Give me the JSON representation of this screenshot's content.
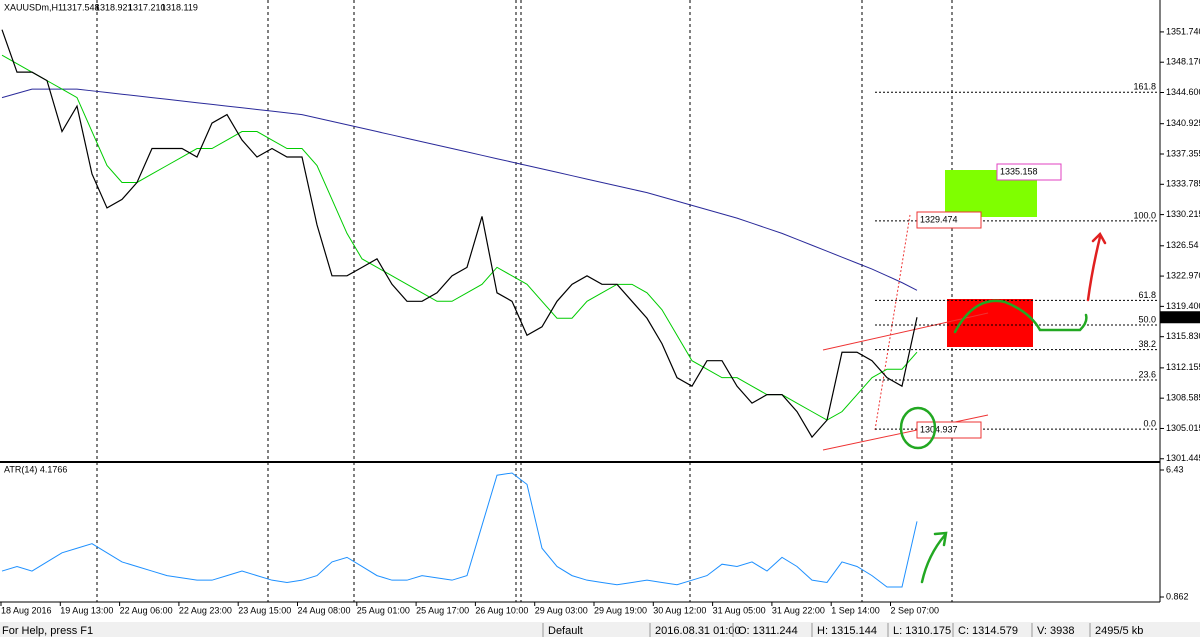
{
  "header": {
    "symbol": "XAUUSDm,H1",
    "open": "1317.548",
    "high": "1318.921",
    "low": "1317.210",
    "close": "1318.119"
  },
  "chart_data": {
    "type": "line",
    "x_labels": [
      "18 Aug 2016",
      "19 Aug 13:00",
      "22 Aug 06:00",
      "22 Aug 23:00",
      "23 Aug 15:00",
      "24 Aug 08:00",
      "25 Aug 01:00",
      "25 Aug 17:00",
      "26 Aug 10:00",
      "29 Aug 03:00",
      "29 Aug 19:00",
      "30 Aug 12:00",
      "31 Aug 05:00",
      "31 Aug 22:00",
      "1 Sep 14:00",
      "2 Sep 07:00"
    ],
    "ylim": [
      1301.3,
      1355.5
    ],
    "yticks": [
      {
        "value": 1351.74,
        "label": "1351.740"
      },
      {
        "value": 1348.17,
        "label": "1348.170"
      },
      {
        "value": 1344.6,
        "label": "1344.600"
      },
      1340.925,
      1337.355,
      1333.785,
      1330.215,
      1326.54,
      {
        "value": 1322.97,
        "label": "1322.970"
      },
      {
        "value": 1319.4,
        "label": "1319.400"
      },
      {
        "value": 1315.83,
        "label": "1315.830"
      },
      1312.155,
      1308.585,
      1305.015,
      1301.445
    ],
    "series": [
      {
        "color": "#000000",
        "values": [
          1352,
          1347,
          1347,
          1346,
          1340,
          1343,
          1335,
          1331,
          1332,
          1334,
          1338,
          1338,
          1338,
          1337,
          1341,
          1342,
          1339,
          1337,
          1338,
          1337,
          1337,
          1329,
          1323,
          1323,
          1324,
          1325,
          1322,
          1320,
          1320,
          1321,
          1323,
          1324,
          1330,
          1321,
          1320,
          1316,
          1317,
          1320,
          1322,
          1323,
          1322,
          1322,
          1320,
          1318,
          1315,
          1311,
          1310,
          1313,
          1313,
          1310,
          1308,
          1309,
          1309,
          1307,
          1304,
          1306,
          1314,
          1314,
          1313,
          1311,
          1310,
          1318.119
        ]
      },
      {
        "color": "#00cc00",
        "values": [
          1349,
          1348,
          1347,
          1346,
          1345,
          1344,
          1340,
          1336,
          1334,
          1334,
          1335,
          1336,
          1337,
          1338,
          1338,
          1339,
          1340,
          1340,
          1339,
          1338,
          1338,
          1336,
          1332,
          1328,
          1325,
          1324,
          1323,
          1322,
          1321,
          1320,
          1320,
          1321,
          1322,
          1324,
          1323,
          1322,
          1320,
          1318,
          1318,
          1320,
          1321,
          1322,
          1322,
          1321,
          1319,
          1316,
          1313,
          1312,
          1311,
          1311,
          1310,
          1309,
          1309,
          1308,
          1307,
          1306,
          1307,
          1309,
          1311,
          1312,
          1312,
          1314
        ]
      },
      {
        "color": "#2a2a9a",
        "values": [
          1344,
          1344.5,
          1345,
          1345,
          1345,
          1345,
          1344.8,
          1344.6,
          1344.4,
          1344.2,
          1344,
          1343.8,
          1343.6,
          1343.4,
          1343.2,
          1343,
          1342.8,
          1342.6,
          1342.4,
          1342.2,
          1342,
          1341.6,
          1341.2,
          1340.8,
          1340.4,
          1340,
          1339.6,
          1339.2,
          1338.8,
          1338.4,
          1338,
          1337.6,
          1337.2,
          1336.8,
          1336.4,
          1336,
          1335.6,
          1335.2,
          1334.8,
          1334.4,
          1334,
          1333.6,
          1333.2,
          1332.8,
          1332.3,
          1331.8,
          1331.3,
          1330.8,
          1330.3,
          1329.8,
          1329.2,
          1328.6,
          1328,
          1327.3,
          1326.6,
          1325.9,
          1325.2,
          1324.5,
          1323.8,
          1323,
          1322.2,
          1321.3
        ]
      }
    ],
    "fibonacci": {
      "low": 1304.937,
      "high": 1329.474,
      "target": 1335.158,
      "levels": [
        161.8,
        {
          "value": 100,
          "label": "100.0"
        },
        61.8,
        {
          "value": 50,
          "label": "50.0"
        },
        38.2,
        23.6,
        {
          "value": 0,
          "label": "0.0"
        }
      ]
    },
    "atr": {
      "title": "ATR(14) 4.1766",
      "color": "#1e90ff",
      "ylim": [
        0.862,
        6.43
      ],
      "yticks": [
        6.43,
        0.862
      ],
      "values": [
        2.0,
        2.2,
        2.0,
        2.4,
        2.8,
        3.0,
        3.2,
        2.8,
        2.4,
        2.2,
        2.0,
        1.8,
        1.7,
        1.6,
        1.6,
        1.8,
        2.0,
        1.8,
        1.6,
        1.5,
        1.6,
        1.8,
        2.4,
        2.6,
        2.2,
        1.8,
        1.6,
        1.6,
        1.8,
        1.7,
        1.6,
        1.8,
        4.0,
        6.2,
        6.3,
        5.8,
        3.0,
        2.2,
        1.8,
        1.6,
        1.5,
        1.4,
        1.5,
        1.6,
        1.5,
        1.4,
        1.6,
        1.8,
        2.3,
        2.2,
        2.4,
        2.0,
        2.6,
        2.2,
        1.6,
        1.5,
        2.4,
        2.2,
        1.8,
        1.3,
        1.3,
        4.1766
      ]
    }
  },
  "status_bar": [
    "For Help, press F1",
    "Default",
    "2016.08.31 01:00",
    "O: 1311.244",
    "H: 1315.144",
    "L: 1310.175",
    "C: 1314.579",
    "V: 3938",
    "2495/5 kb"
  ]
}
